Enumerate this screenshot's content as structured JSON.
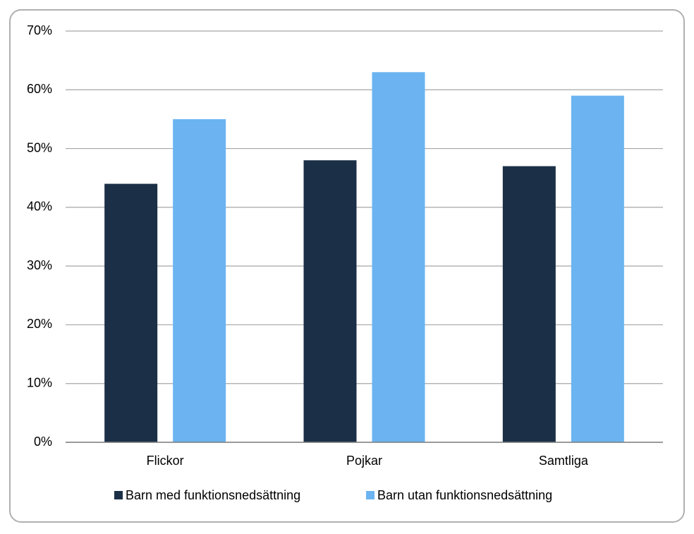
{
  "chart_data": {
    "type": "bar",
    "categories": [
      "Flickor",
      "Pojkar",
      "Samtliga"
    ],
    "series": [
      {
        "name": "Barn med funktionsnedsättning",
        "color": "#1b2f47",
        "values": [
          44,
          48,
          47
        ]
      },
      {
        "name": "Barn utan funktionsnedsättning",
        "color": "#6bb4f1",
        "values": [
          55,
          63,
          59
        ]
      }
    ],
    "ylim": [
      0,
      70
    ],
    "yticks": [
      {
        "value": 0,
        "label": "0%"
      },
      {
        "value": 10,
        "label": "10%"
      },
      {
        "value": 20,
        "label": "20%"
      },
      {
        "value": 30,
        "label": "30%"
      },
      {
        "value": 40,
        "label": "40%"
      },
      {
        "value": 50,
        "label": "50%"
      },
      {
        "value": 60,
        "label": "60%"
      },
      {
        "value": 70,
        "label": "70%"
      }
    ],
    "grid": true,
    "legend": "bottom"
  }
}
